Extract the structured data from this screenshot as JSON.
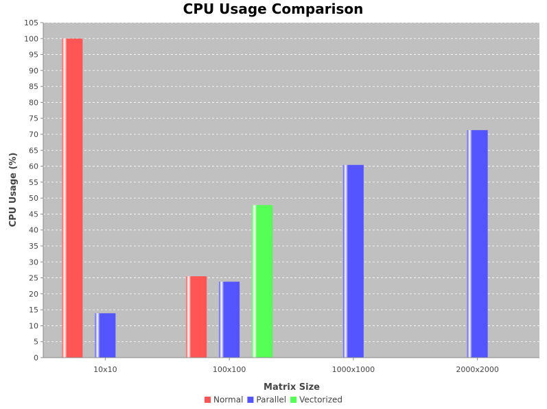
{
  "chart_data": {
    "type": "bar",
    "title": "CPU Usage Comparison",
    "xlabel": "Matrix Size",
    "ylabel": "CPU Usage (%)",
    "categories": [
      "10x10",
      "100x100",
      "1000x1000",
      "2000x2000"
    ],
    "series": [
      {
        "name": "Normal",
        "color": "#ff5555",
        "values": [
          100,
          25.5,
          null,
          null
        ]
      },
      {
        "name": "Parallel",
        "color": "#5555ff",
        "values": [
          13.9,
          23.8,
          60.4,
          71.3
        ]
      },
      {
        "name": "Vectorized",
        "color": "#55ff55",
        "values": [
          null,
          47.8,
          null,
          null
        ]
      }
    ],
    "ylim": [
      0,
      105
    ],
    "yticks": [
      0,
      5,
      10,
      15,
      20,
      25,
      30,
      35,
      40,
      45,
      50,
      55,
      60,
      65,
      70,
      75,
      80,
      85,
      90,
      95,
      100,
      105
    ],
    "grid": true,
    "plot_background": "#c0c0c0",
    "legend_position": "bottom"
  }
}
